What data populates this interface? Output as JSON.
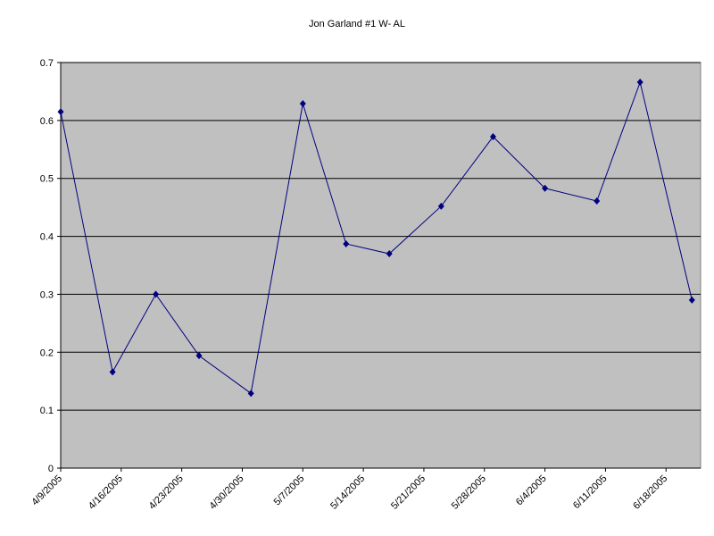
{
  "chart_data": {
    "type": "line",
    "title": "Jon Garland #1 W- AL",
    "x": [
      "4/9/2005",
      "4/15/2005",
      "4/20/2005",
      "4/25/2005",
      "5/1/2005",
      "5/7/2005",
      "5/12/2005",
      "5/17/2005",
      "5/23/2005",
      "5/29/2005",
      "6/4/2005",
      "6/10/2005",
      "6/15/2005",
      "6/21/2005"
    ],
    "series": [
      {
        "color": "#000080",
        "values": [
          0.615,
          0.166,
          0.3,
          0.194,
          0.129,
          0.629,
          0.387,
          0.37,
          0.452,
          0.572,
          0.483,
          0.461,
          0.666,
          0.29
        ]
      }
    ],
    "xlim": [
      "4/9/2005",
      "6/22/2005"
    ],
    "xticks": [
      "4/9/2005",
      "4/16/2005",
      "4/23/2005",
      "4/30/2005",
      "5/7/2005",
      "5/14/2005",
      "5/21/2005",
      "5/28/2005",
      "6/4/2005",
      "6/11/2005",
      "6/18/2005"
    ],
    "ylim": [
      0,
      0.7
    ],
    "yticks": [
      0,
      0.1,
      0.2,
      0.3,
      0.4,
      0.5,
      0.6,
      0.7
    ],
    "grid": true,
    "plot_background": "#c0c0c0"
  }
}
